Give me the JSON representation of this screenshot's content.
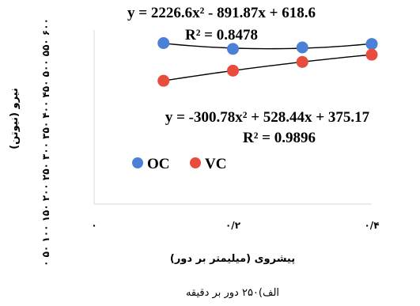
{
  "chart_data": {
    "type": "scatter",
    "x_ticks": [
      "۰",
      "۰/۲",
      "۰/۴"
    ],
    "xlim": [
      0,
      0.4
    ],
    "ylabel": "نیرو (نیوتن)",
    "ytick_labels": "۰ ۵۰ ۱۰۰ ۱۵۰ ۲۰۰ ۲۵۰ ۳۰۰ ۳۵۰ ۴۰۰ ۴۵۰ ۵۰۰ ۵۵۰ ۶۰۰",
    "ylim": [
      0,
      600
    ],
    "xlabel": "پیشروی (میلیمتر بر دور)",
    "caption": "الف)۲۵۰ دور بر دقیقه",
    "legend_position": "middle-left",
    "grid": false,
    "series": [
      {
        "name": "OC",
        "color": "#4c7fd6",
        "x": [
          0.1,
          0.2,
          0.3,
          0.4
        ],
        "y": [
          555,
          535,
          540,
          552
        ],
        "trendline": {
          "equation": "y = 2226.6x² - 891.87x + 618.6",
          "r2": "R² = 0.8478",
          "coef": [
            2226.6,
            -891.87,
            618.6
          ]
        }
      },
      {
        "name": "VC",
        "color": "#e84c3d",
        "x": [
          0.1,
          0.2,
          0.3,
          0.4
        ],
        "y": [
          425,
          460,
          490,
          515
        ],
        "trendline": {
          "equation": "y = -300.78x² + 528.44x + 375.17",
          "r2": "R² = 0.9896",
          "coef": [
            -300.78,
            528.44,
            375.17
          ]
        }
      }
    ]
  }
}
